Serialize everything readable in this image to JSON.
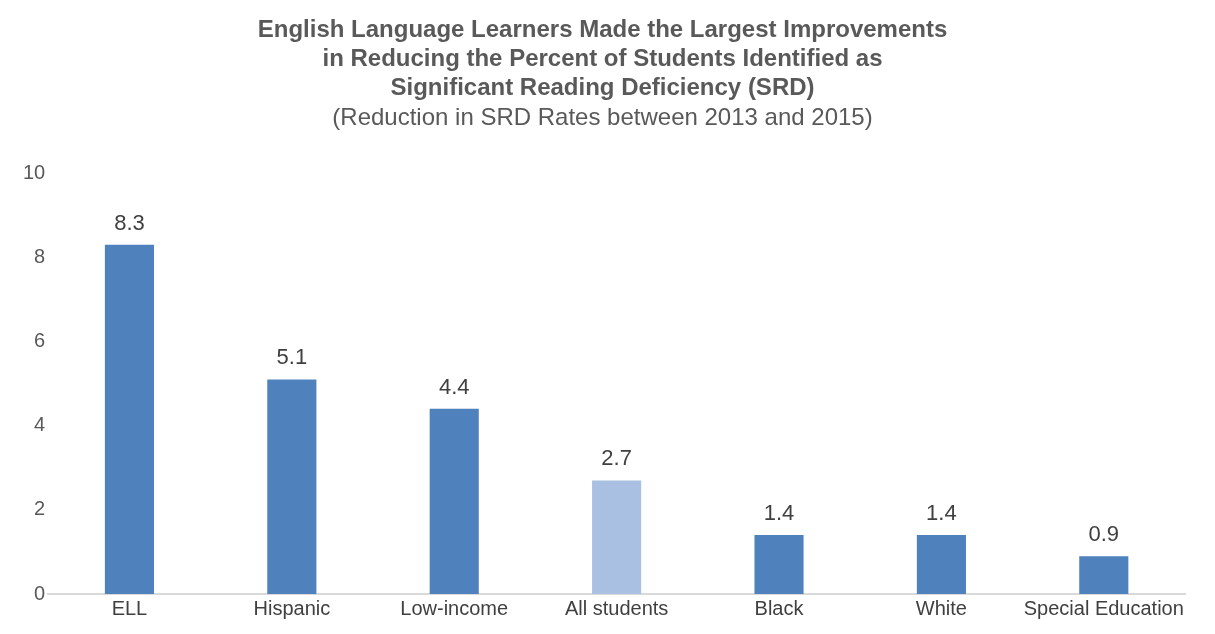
{
  "chart_data": {
    "type": "bar",
    "title": "English Language Learners Made the Largest Improvements in Reducing the Percent of Students Identified as Significant Reading Deficiency (SRD)",
    "subtitle": "(Reduction in SRD Rates between 2013 and 2015)",
    "categories": [
      "ELL",
      "Hispanic",
      "Low-income",
      "All students",
      "Black",
      "White",
      "Special Education"
    ],
    "values": [
      8.3,
      5.1,
      4.4,
      2.7,
      1.4,
      1.4,
      0.9
    ],
    "colors": [
      "#4f81bd",
      "#4f81bd",
      "#4f81bd",
      "#a9c0e2",
      "#4f81bd",
      "#4f81bd",
      "#4f81bd"
    ],
    "ylim": [
      0,
      10
    ],
    "yticks": [
      0,
      2,
      4,
      6,
      8,
      10
    ],
    "grid": false,
    "legend": false,
    "data_labels": true
  }
}
